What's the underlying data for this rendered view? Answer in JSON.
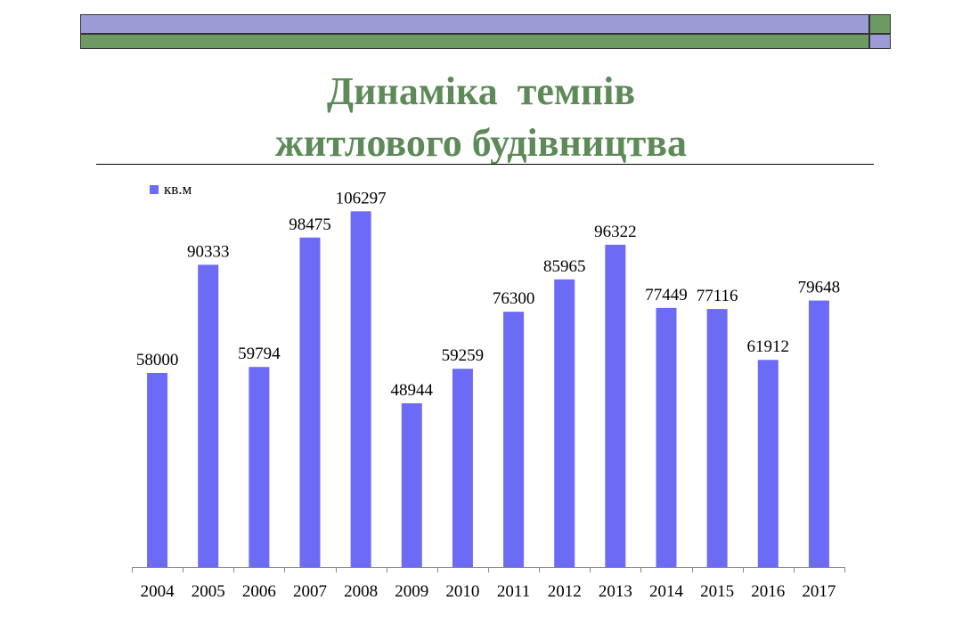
{
  "title": {
    "line1": "Динаміка  темпів",
    "line2": "житлового будівництва"
  },
  "colors": {
    "bar": "#6b6bf5",
    "title": "#5d8a58",
    "band_purple": "#9b9bd5",
    "band_green": "#6d9a63"
  },
  "chart_data": {
    "type": "bar",
    "categories": [
      "2004",
      "2005",
      "2006",
      "2007",
      "2008",
      "2009",
      "2010",
      "2011",
      "2012",
      "2013",
      "2014",
      "2015",
      "2016",
      "2017"
    ],
    "series": [
      {
        "name": "кв.м",
        "values": [
          58000,
          90333,
          59794,
          98475,
          106297,
          48944,
          59259,
          76300,
          85965,
          96322,
          77449,
          77116,
          61912,
          79648
        ]
      }
    ],
    "ylim": [
      0,
      110000
    ],
    "grid": false,
    "legend": "top-left",
    "data_labels": true
  }
}
